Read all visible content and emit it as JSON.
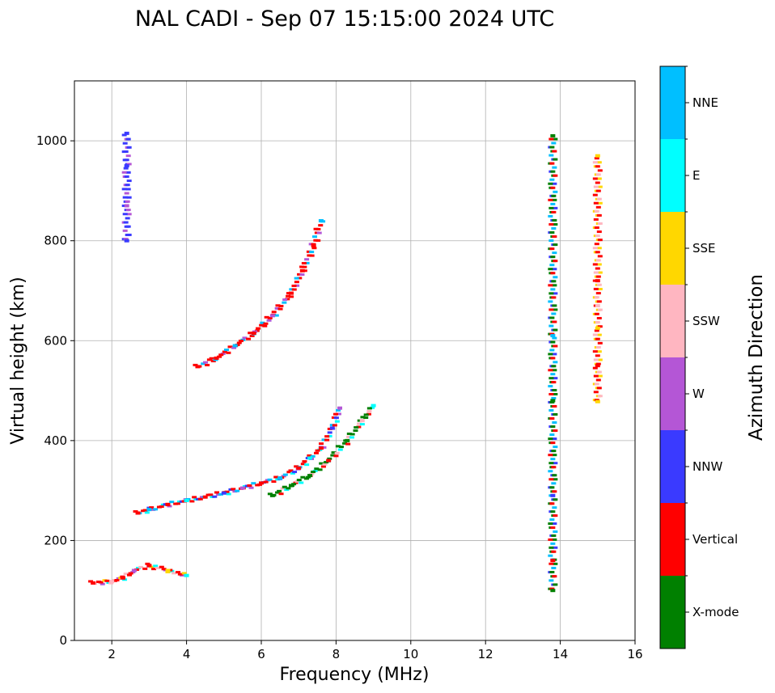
{
  "chart_data": {
    "type": "scatter",
    "title": "NAL CADI - Sep 07 15:15:00 2024 UTC",
    "xlabel": "Frequency (MHz)",
    "ylabel": "Virtual height (km)",
    "xlim": [
      1,
      16
    ],
    "ylim": [
      0,
      1120
    ],
    "xticks": [
      2,
      4,
      6,
      8,
      10,
      12,
      14,
      16
    ],
    "yticks": [
      0,
      200,
      400,
      600,
      800,
      1000
    ],
    "grid": true,
    "colorbar": {
      "label": "Azimuth Direction",
      "categories": [
        {
          "name": "X-mode",
          "color": "#008000"
        },
        {
          "name": "Vertical",
          "color": "#ff0000"
        },
        {
          "name": "NNW",
          "color": "#3a3aff"
        },
        {
          "name": "W",
          "color": "#b456d6"
        },
        {
          "name": "SSW",
          "color": "#ffb6c1"
        },
        {
          "name": "SSE",
          "color": "#ffd700"
        },
        {
          "name": "E",
          "color": "#00ffff"
        },
        {
          "name": "NNE",
          "color": "#00bfff"
        }
      ]
    },
    "traces": [
      {
        "name": "F-layer O-mode trace",
        "x": [
          2.7,
          3.0,
          3.5,
          4.0,
          4.5,
          5.0,
          5.5,
          6.0,
          6.5,
          7.0,
          7.3,
          7.6,
          7.9,
          8.1
        ],
        "y": [
          255,
          262,
          272,
          280,
          287,
          295,
          305,
          315,
          325,
          345,
          365,
          385,
          425,
          465
        ]
      },
      {
        "name": "F-layer X-mode trace",
        "x": [
          6.3,
          6.8,
          7.3,
          7.8,
          8.3,
          8.7,
          9.0
        ],
        "y": [
          290,
          310,
          330,
          360,
          400,
          440,
          470
        ]
      },
      {
        "name": "Multi-hop O-mode trace",
        "x": [
          4.3,
          4.8,
          5.3,
          5.8,
          6.3,
          6.8,
          7.1,
          7.4,
          7.6
        ],
        "y": [
          548,
          565,
          590,
          615,
          650,
          695,
          740,
          790,
          840
        ]
      },
      {
        "name": "E-layer echoes",
        "x": [
          1.5,
          2.0,
          2.3,
          2.6,
          3.0,
          3.5,
          4.0
        ],
        "y": [
          115,
          118,
          125,
          140,
          150,
          140,
          130
        ]
      },
      {
        "name": "Vertical streak",
        "x": [
          2.4,
          2.4,
          2.4,
          2.4
        ],
        "y": [
          800,
          870,
          950,
          1015
        ]
      },
      {
        "name": "Column 13.8 MHz",
        "x": [
          13.8,
          13.8,
          13.8,
          13.8,
          13.8,
          13.8
        ],
        "y": [
          100,
          160,
          290,
          480,
          610,
          1010
        ]
      },
      {
        "name": "Column 15 MHz",
        "x": [
          15.0,
          15.0,
          15.0,
          15.0,
          15.0,
          15.0
        ],
        "y": [
          478,
          550,
          625,
          670,
          720,
          970
        ]
      }
    ]
  }
}
